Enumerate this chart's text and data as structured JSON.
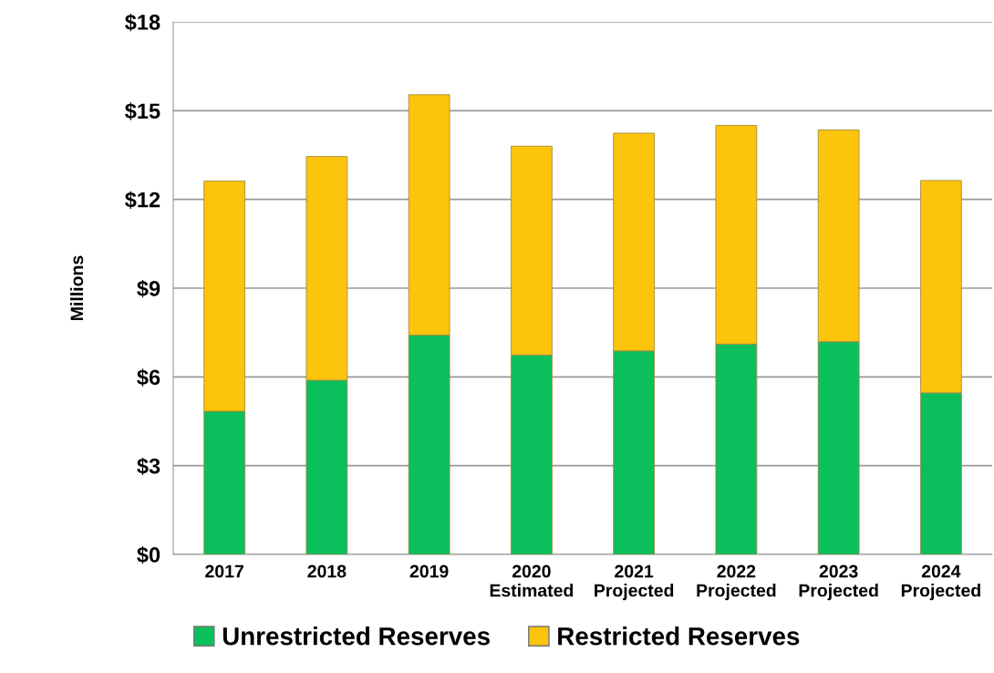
{
  "chart_data": {
    "type": "bar",
    "stacked": true,
    "ylabel": "Millions",
    "categories": [
      "2017",
      "2018",
      "2019",
      "2020\nEstimated",
      "2021\nProjected",
      "2022\nProjected",
      "2023\nProjected",
      "2024\nProjected"
    ],
    "series": [
      {
        "name": "Unrestricted Reserves",
        "color": "#0bbf5c",
        "values": [
          4.84,
          5.89,
          7.41,
          6.74,
          6.88,
          7.11,
          7.19,
          5.46
        ]
      },
      {
        "name": "Restricted Reserves",
        "color": "#fcc40a",
        "values": [
          7.78,
          7.56,
          8.13,
          7.06,
          7.36,
          7.39,
          7.16,
          7.18
        ]
      }
    ],
    "ylim": [
      0,
      18
    ],
    "yticks": [
      {
        "value": 0,
        "label": "$0"
      },
      {
        "value": 3,
        "label": "$3"
      },
      {
        "value": 6,
        "label": "$6"
      },
      {
        "value": 9,
        "label": "$9"
      },
      {
        "value": 12,
        "label": "$12"
      },
      {
        "value": 15,
        "label": "$15"
      },
      {
        "value": 18,
        "label": "$18"
      }
    ],
    "grid": "y",
    "legend": "bottom"
  }
}
